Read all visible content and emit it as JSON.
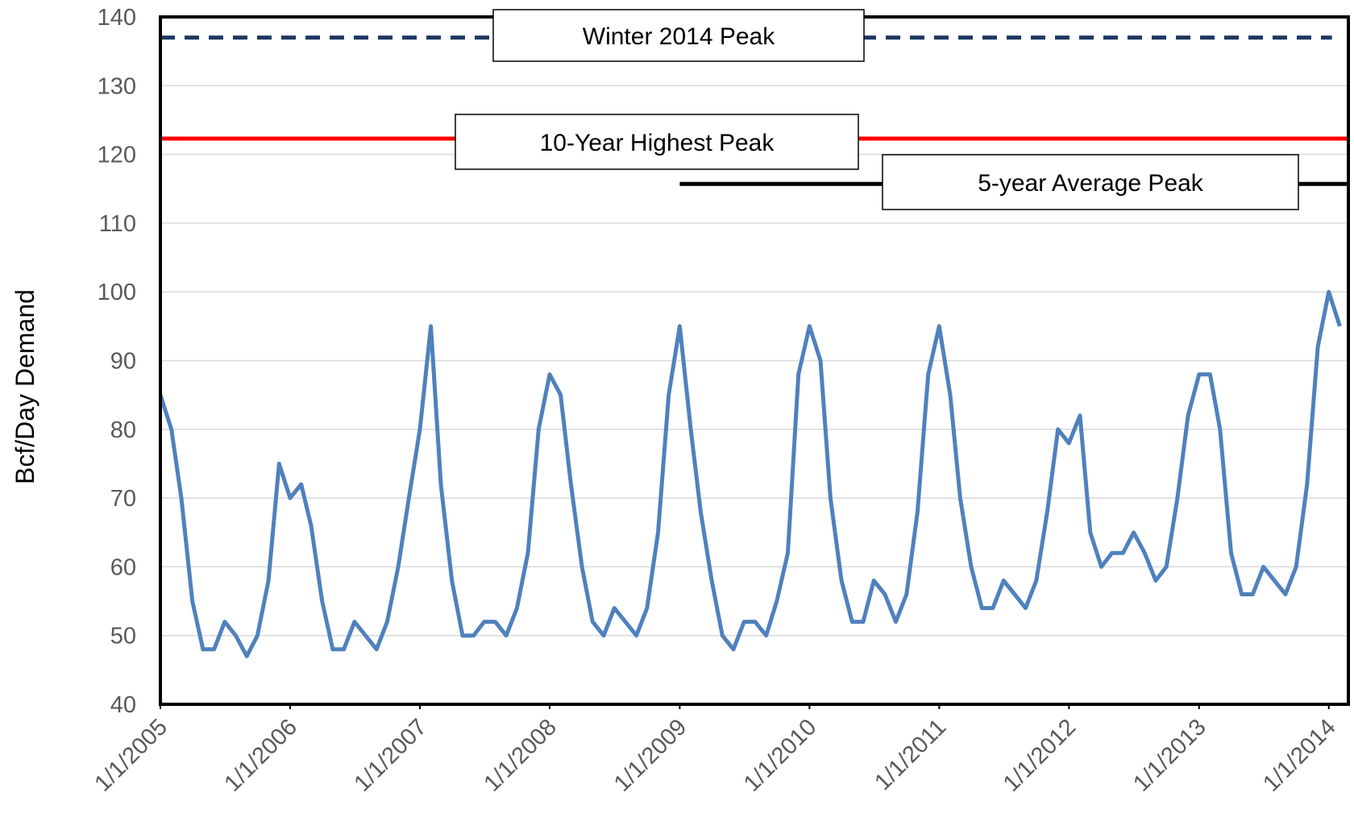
{
  "chart_data": {
    "type": "line",
    "y_label": "Bcf/Day Demand",
    "x": [
      "1/1/2005",
      "2/1/2005",
      "3/1/2005",
      "4/1/2005",
      "5/1/2005",
      "6/1/2005",
      "7/1/2005",
      "8/1/2005",
      "9/1/2005",
      "10/1/2005",
      "11/1/2005",
      "12/1/2005",
      "1/1/2006",
      "2/1/2006",
      "3/1/2006",
      "4/1/2006",
      "5/1/2006",
      "6/1/2006",
      "7/1/2006",
      "8/1/2006",
      "9/1/2006",
      "10/1/2006",
      "11/1/2006",
      "12/1/2006",
      "1/1/2007",
      "2/1/2007",
      "3/1/2007",
      "4/1/2007",
      "5/1/2007",
      "6/1/2007",
      "7/1/2007",
      "8/1/2007",
      "9/1/2007",
      "10/1/2007",
      "11/1/2007",
      "12/1/2007",
      "1/1/2008",
      "2/1/2008",
      "3/1/2008",
      "4/1/2008",
      "5/1/2008",
      "6/1/2008",
      "7/1/2008",
      "8/1/2008",
      "9/1/2008",
      "10/1/2008",
      "11/1/2008",
      "12/1/2008",
      "1/1/2009",
      "2/1/2009",
      "3/1/2009",
      "4/1/2009",
      "5/1/2009",
      "6/1/2009",
      "7/1/2009",
      "8/1/2009",
      "9/1/2009",
      "10/1/2009",
      "11/1/2009",
      "12/1/2009",
      "1/1/2010",
      "2/1/2010",
      "3/1/2010",
      "4/1/2010",
      "5/1/2010",
      "6/1/2010",
      "7/1/2010",
      "8/1/2010",
      "9/1/2010",
      "10/1/2010",
      "11/1/2010",
      "12/1/2010",
      "1/1/2011",
      "2/1/2011",
      "3/1/2011",
      "4/1/2011",
      "5/1/2011",
      "6/1/2011",
      "7/1/2011",
      "8/1/2011",
      "9/1/2011",
      "10/1/2011",
      "11/1/2011",
      "12/1/2011",
      "1/1/2012",
      "2/1/2012",
      "3/1/2012",
      "4/1/2012",
      "5/1/2012",
      "6/1/2012",
      "7/1/2012",
      "8/1/2012",
      "9/1/2012",
      "10/1/2012",
      "11/1/2012",
      "12/1/2012",
      "1/1/2013",
      "2/1/2013",
      "3/1/2013",
      "4/1/2013",
      "5/1/2013",
      "6/1/2013",
      "7/1/2013",
      "8/1/2013",
      "9/1/2013",
      "10/1/2013",
      "11/1/2013",
      "12/1/2013",
      "1/1/2014",
      "2/1/2014"
    ],
    "series": [
      {
        "name": "Demand",
        "color": "#4f81bd",
        "values": [
          85,
          80,
          70,
          55,
          48,
          48,
          52,
          50,
          47,
          50,
          58,
          75,
          70,
          72,
          66,
          55,
          48,
          48,
          52,
          50,
          48,
          52,
          60,
          70,
          80,
          95,
          72,
          58,
          50,
          50,
          52,
          52,
          50,
          54,
          62,
          80,
          88,
          85,
          72,
          60,
          52,
          50,
          54,
          52,
          50,
          54,
          65,
          85,
          95,
          80,
          68,
          58,
          50,
          48,
          52,
          52,
          50,
          55,
          62,
          88,
          95,
          90,
          70,
          58,
          52,
          52,
          58,
          56,
          52,
          56,
          68,
          88,
          95,
          85,
          70,
          60,
          54,
          54,
          58,
          56,
          54,
          58,
          68,
          80,
          78,
          82,
          65,
          60,
          62,
          62,
          65,
          62,
          58,
          60,
          70,
          82,
          88,
          88,
          80,
          62,
          56,
          56,
          60,
          58,
          56,
          60,
          72,
          92,
          100,
          95
        ]
      }
    ],
    "reference_lines": [
      {
        "label": "Winter 2014 Peak",
        "value": 137,
        "color": "#1f3864",
        "style": "dashed",
        "start": "1/1/2005",
        "end": "1/10/2014"
      },
      {
        "label": "10-Year Highest Peak",
        "value": 122.3,
        "color": "#ff0000",
        "style": "solid",
        "start": "1/1/2005",
        "end": "2/25/2014"
      },
      {
        "label": "5-year Average Peak",
        "value": 115.7,
        "color": "#000000",
        "style": "solid",
        "start": "1/1/2009",
        "end": "2/25/2014"
      }
    ],
    "xlim": [
      "1/1/2005",
      "2/25/2014"
    ],
    "xticks": [
      "1/1/2005",
      "1/1/2006",
      "1/1/2007",
      "1/1/2008",
      "1/1/2009",
      "1/1/2010",
      "1/1/2011",
      "1/1/2012",
      "1/1/2013",
      "1/1/2014"
    ],
    "ylim": [
      40,
      140
    ],
    "yticks": [
      40,
      50,
      60,
      70,
      80,
      90,
      100,
      110,
      120,
      130,
      140
    ],
    "grid": true
  }
}
